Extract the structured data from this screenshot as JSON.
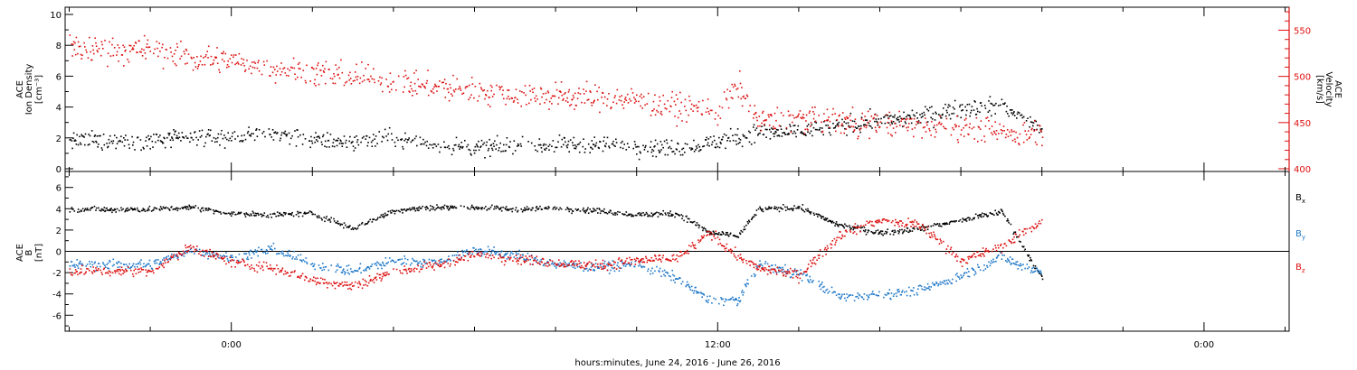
{
  "chart_data": [
    {
      "type": "scatter",
      "panel": "top",
      "ylabel_left": [
        "ACE",
        "Ion Density",
        "[cm⁻³]"
      ],
      "ylabel_right": [
        "ACE",
        "Velocity",
        "[km/s]"
      ],
      "y_left_ticks": [
        "0",
        "2",
        "4",
        "6",
        "8",
        "10"
      ],
      "y_left_range": [
        0,
        10
      ],
      "y_right_ticks": [
        "400",
        "450",
        "500",
        "550"
      ],
      "y_right_range": [
        400,
        570
      ],
      "right_axis_color": "#dd1111",
      "x_hours": [
        -2,
        -1,
        0,
        1,
        2,
        3,
        4,
        5,
        6,
        7,
        8,
        9,
        10,
        11,
        12,
        12.5,
        13,
        14,
        15,
        16,
        17,
        18,
        19,
        20
      ],
      "series": [
        {
          "color": "#000000",
          "axis": "left",
          "values": [
            1.9,
            2.0,
            2.1,
            2.3,
            1.9,
            1.8,
            2.0,
            1.6,
            1.4,
            1.5,
            1.6,
            1.6,
            1.5,
            1.4,
            1.8,
            2.1,
            2.4,
            2.4,
            2.8,
            3.2,
            3.4,
            4.0,
            4.1,
            2.7
          ]
        },
        {
          "color": "#dd1111",
          "axis": "right",
          "values": [
            530,
            520,
            518,
            510,
            505,
            500,
            495,
            490,
            485,
            481,
            480,
            478,
            474,
            468,
            462,
            490,
            452,
            455,
            452,
            450,
            448,
            446,
            439,
            441
          ]
        }
      ]
    },
    {
      "type": "scatter",
      "panel": "bottom",
      "ylabel": [
        "ACE",
        "B",
        "[nT]"
      ],
      "y_ticks": [
        "-6",
        "-4",
        "-2",
        "0",
        "2",
        "4",
        "6"
      ],
      "y_range": [
        -7.5,
        7.5
      ],
      "x_hours": [
        -2,
        -1,
        0,
        1,
        2,
        3,
        4,
        5,
        6,
        7,
        8,
        9,
        10,
        11,
        11.8,
        12.5,
        13,
        14,
        15,
        16,
        17,
        18,
        19,
        20
      ],
      "series": [
        {
          "name": "Bx",
          "color": "#000000",
          "values": [
            4.0,
            4.2,
            3.6,
            3.5,
            3.6,
            2.2,
            3.9,
            4.2,
            4.2,
            4.0,
            4.1,
            3.9,
            3.5,
            3.6,
            1.8,
            1.5,
            4.0,
            4.2,
            2.5,
            1.8,
            2.2,
            3.0,
            3.8,
            -2.5
          ]
        },
        {
          "name": "By",
          "color": "#1f78c8",
          "values": [
            -1.2,
            0.2,
            -0.6,
            0.3,
            -1.2,
            -1.8,
            -0.8,
            -1.0,
            0.2,
            -0.3,
            -1.2,
            -1.4,
            -1.2,
            -2.5,
            -4.6,
            -4.5,
            -1.2,
            -2.0,
            -4.2,
            -4.0,
            -3.6,
            -2.2,
            -0.5,
            -2.0
          ]
        },
        {
          "name": "Bz",
          "color": "#dd1111",
          "values": [
            -1.8,
            0.5,
            -1.0,
            -1.5,
            -2.6,
            -3.2,
            -1.8,
            -1.3,
            -0.3,
            -0.6,
            -1.0,
            -1.3,
            -0.8,
            -0.6,
            1.8,
            -0.5,
            -1.5,
            -2.2,
            1.6,
            3.0,
            2.5,
            -0.8,
            0.5,
            3.0
          ]
        }
      ]
    }
  ],
  "x_axis": {
    "ticks": [
      {
        "hour": 0,
        "label": "0:00"
      },
      {
        "hour": 12,
        "label": "12:00"
      },
      {
        "hour": 24,
        "label": "0:00"
      }
    ],
    "minor_step_hours": 2,
    "range_hours": [
      -4.1,
      26.1
    ],
    "xlabel": "hours:minutes, June 24, 2016 - June 26, 2016"
  },
  "legend": [
    "B",
    "B",
    "B"
  ],
  "legend_subscripts": [
    "x",
    "y",
    "z"
  ]
}
